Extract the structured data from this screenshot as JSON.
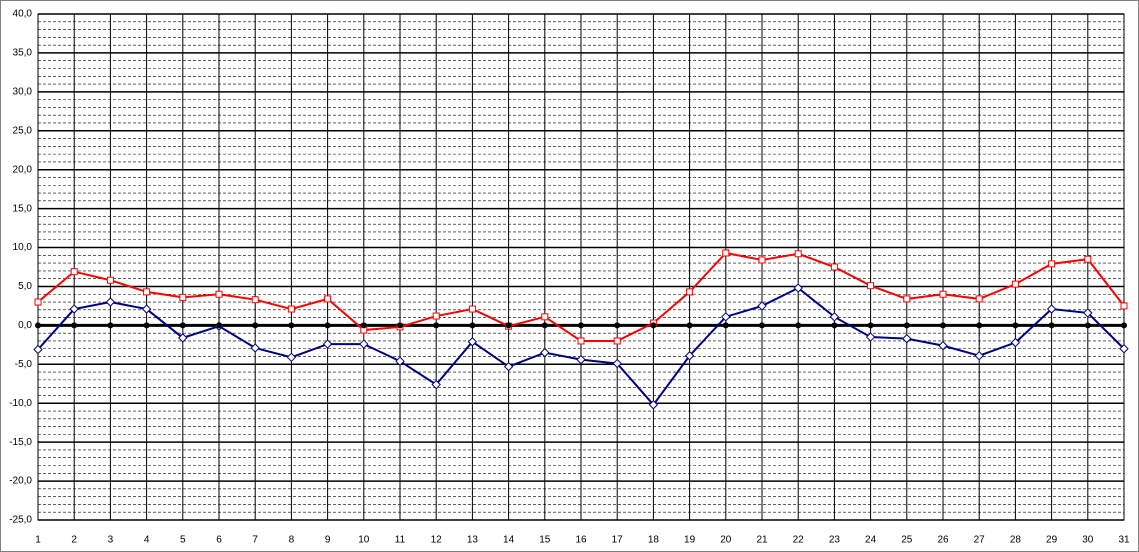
{
  "chart_data": {
    "type": "line",
    "categories": [
      "1",
      "2",
      "3",
      "4",
      "5",
      "6",
      "7",
      "8",
      "9",
      "10",
      "11",
      "12",
      "13",
      "14",
      "15",
      "16",
      "17",
      "18",
      "19",
      "20",
      "21",
      "22",
      "23",
      "24",
      "25",
      "26",
      "27",
      "28",
      "29",
      "30",
      "31"
    ],
    "series": [
      {
        "color": "#ff0000",
        "marker": "square",
        "values": [
          3.0,
          6.9,
          5.8,
          4.3,
          3.6,
          4.0,
          3.3,
          2.1,
          3.4,
          -0.6,
          -0.2,
          1.2,
          2.1,
          -0.1,
          1.1,
          -2.0,
          -2.0,
          0.3,
          4.3,
          9.3,
          8.4,
          9.2,
          7.5,
          5.1,
          3.4,
          4.0,
          3.4,
          5.3,
          7.9,
          8.5,
          2.5
        ]
      },
      {
        "color": "#000080",
        "marker": "diamond",
        "values": [
          -3.1,
          2.1,
          3.0,
          2.1,
          -1.6,
          -0.1,
          -2.9,
          -4.1,
          -2.4,
          -2.4,
          -4.6,
          -7.6,
          -2.1,
          -5.3,
          -3.5,
          -4.4,
          -4.9,
          -10.2,
          -3.9,
          1.1,
          2.5,
          4.8,
          1.1,
          -1.5,
          -1.7,
          -2.6,
          -3.9,
          -2.2,
          2.1,
          1.6,
          -3.0
        ]
      },
      {
        "color": "#000000",
        "marker": "circle",
        "values": [
          0,
          0,
          0,
          0,
          0,
          0,
          0,
          0,
          0,
          0,
          0,
          0,
          0,
          0,
          0,
          0,
          0,
          0,
          0,
          0,
          0,
          0,
          0,
          0,
          0,
          0,
          0,
          0,
          0,
          0,
          0
        ]
      }
    ],
    "ylim": [
      -25,
      40
    ],
    "yticks": [
      {
        "value": -25,
        "label": "-25,0"
      },
      {
        "value": -20,
        "label": "-20,0"
      },
      {
        "value": -15,
        "label": "-15,0"
      },
      {
        "value": -10,
        "label": "-10,0"
      },
      {
        "value": -5,
        "label": "-5,0"
      },
      {
        "value": 0,
        "label": "0,0"
      },
      {
        "value": 5,
        "label": "5,0"
      },
      {
        "value": 10,
        "label": "10,0"
      },
      {
        "value": 15,
        "label": "15,0"
      },
      {
        "value": 20,
        "label": "20,0"
      },
      {
        "value": 25,
        "label": "25,0"
      },
      {
        "value": 30,
        "label": "30,0"
      },
      {
        "value": 35,
        "label": "35,0"
      },
      {
        "value": 40,
        "label": "40,0"
      }
    ],
    "grid": true,
    "minor_grid_step": 1
  }
}
